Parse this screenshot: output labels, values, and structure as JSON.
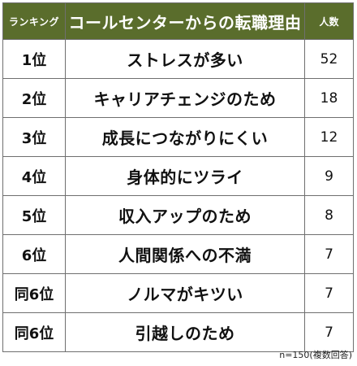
{
  "table": {
    "headers": {
      "rank": "ランキング",
      "reason": "コールセンターからの転職理由",
      "count": "人数"
    },
    "rows": [
      {
        "rank": "1位",
        "reason": "ストレスが多い",
        "count": "52"
      },
      {
        "rank": "2位",
        "reason": "キャリアチェンジのため",
        "count": "18"
      },
      {
        "rank": "3位",
        "reason": "成長につながりにくい",
        "count": "12"
      },
      {
        "rank": "4位",
        "reason": "身体的にツライ",
        "count": "9"
      },
      {
        "rank": "5位",
        "reason": "収入アップのため",
        "count": "8"
      },
      {
        "rank": "6位",
        "reason": "人間関係への不満",
        "count": "7"
      },
      {
        "rank": "同6位",
        "reason": "ノルマがキツい",
        "count": "7"
      },
      {
        "rank": "同6位",
        "reason": "引越しのため",
        "count": "7"
      }
    ]
  },
  "footnote": "n=150(複数回答)",
  "colors": {
    "header_bg": "#5a6d2c",
    "header_text": "#ffffff",
    "border": "#6f6f6f"
  }
}
